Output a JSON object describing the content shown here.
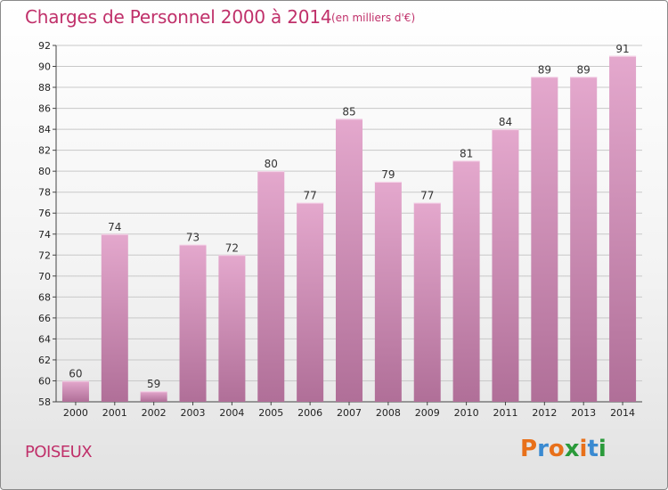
{
  "header": {
    "title": "Charges de Personnel 2000 à 2014",
    "unit_note": "(en milliers d'€)"
  },
  "footer": {
    "place": "POISEUX",
    "logo_text": "Proxiti"
  },
  "colors": {
    "title": "#c0306a",
    "bar_top": "#e4a8cd",
    "bar_bottom": "#b06f98",
    "gridline": "#c8c8c8",
    "logo_letters": [
      "#e8701a",
      "#3a8ad1",
      "#e8701a",
      "#2a9a3a",
      "#e8701a",
      "#3a8ad1",
      "#2a9a3a"
    ]
  },
  "chart_data": {
    "type": "bar",
    "categories": [
      "2000",
      "2001",
      "2002",
      "2003",
      "2004",
      "2005",
      "2006",
      "2007",
      "2008",
      "2009",
      "2010",
      "2011",
      "2012",
      "2013",
      "2014"
    ],
    "values": [
      60,
      74,
      59,
      73,
      72,
      80,
      77,
      85,
      79,
      77,
      81,
      84,
      89,
      89,
      91
    ],
    "title": "Charges de Personnel 2000 à 2014",
    "ylabel": "",
    "ylim": [
      58,
      92
    ],
    "yticks": [
      58,
      60,
      62,
      64,
      66,
      68,
      70,
      72,
      74,
      76,
      78,
      80,
      82,
      84,
      86,
      88,
      90,
      92
    ],
    "grid": true,
    "data_labels": true
  }
}
